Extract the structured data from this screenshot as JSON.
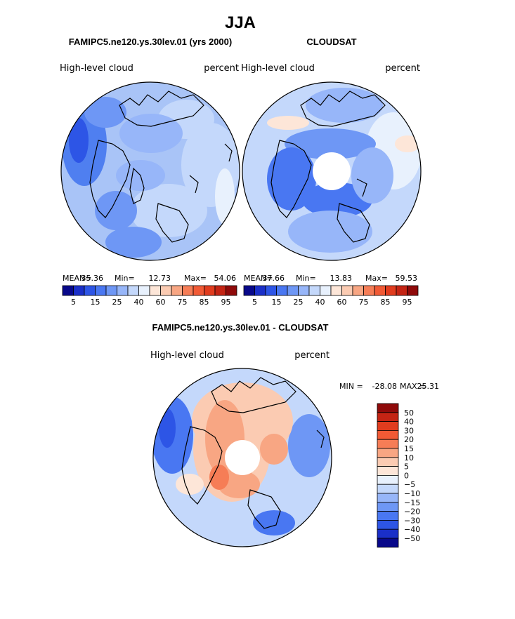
{
  "chart_data": [
    {
      "type": "heatmap",
      "projection": "north-polar-stereographic",
      "panel": "model",
      "run_title": "FAMIPC5.ne120.ys.30lev.01 (yrs 2000)",
      "left_label": "High-level cloud",
      "right_label": "percent",
      "stats": {
        "mean_label": "MEAN=",
        "mean": "35.36",
        "min_label": "Min=",
        "min": "12.73",
        "max_label": "Max=",
        "max": "54.06"
      },
      "colorbar_labels": [
        "5",
        "15",
        "25",
        "40",
        "60",
        "75",
        "85",
        "95"
      ],
      "colorbar_colors": [
        "#08088a",
        "#1a2fc8",
        "#2d55e6",
        "#4977f2",
        "#6e97f5",
        "#97b6f9",
        "#c4d8fb",
        "#e8f1fd",
        "#fde6d8",
        "#fbcbb2",
        "#f8a683",
        "#f67d56",
        "#f15a35",
        "#e13c1e",
        "#c42414",
        "#8f0a0a"
      ]
    },
    {
      "type": "heatmap",
      "projection": "north-polar-stereographic",
      "panel": "observations",
      "run_title": "CLOUDSAT",
      "left_label": "High-level cloud",
      "right_label": "percent",
      "stats": {
        "mean_label": "MEAN=",
        "mean": "37.66",
        "min_label": "Min=",
        "min": "13.83",
        "max_label": "Max=",
        "max": "59.53"
      },
      "colorbar_labels": [
        "5",
        "15",
        "25",
        "40",
        "60",
        "75",
        "85",
        "95"
      ]
    },
    {
      "type": "heatmap",
      "projection": "north-polar-stereographic",
      "panel": "difference",
      "run_title": "FAMIPC5.ne120.ys.30lev.01 - CLOUDSAT",
      "left_label": "High-level cloud",
      "right_label": "percent",
      "stats": {
        "min_label": "MIN =",
        "min": "-28.08",
        "max_label": "MAX =",
        "max": "25.31"
      },
      "colorbar_labels": [
        "50",
        "40",
        "30",
        "20",
        "15",
        "10",
        "5",
        "0",
        "−5",
        "−10",
        "−15",
        "−20",
        "−30",
        "−40",
        "−50"
      ],
      "colorbar_colors": [
        "#8f0a0a",
        "#c42414",
        "#e13c1e",
        "#f15a35",
        "#f67d56",
        "#f8a683",
        "#fbcbb2",
        "#fde6d8",
        "#e8f1fd",
        "#c4d8fb",
        "#97b6f9",
        "#6e97f5",
        "#4977f2",
        "#2d55e6",
        "#1a2fc8",
        "#08088a"
      ]
    }
  ],
  "season": "JJA"
}
